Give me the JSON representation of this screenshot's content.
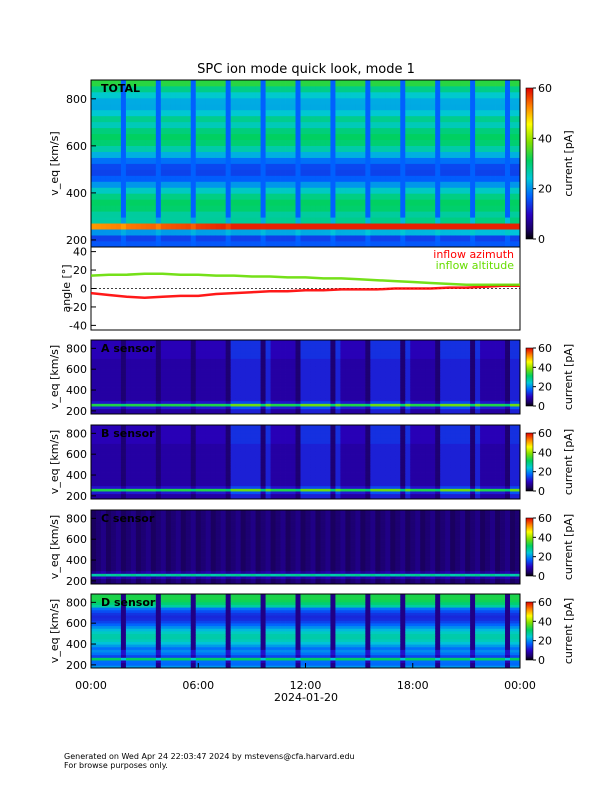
{
  "chart_data": [
    {
      "type": "heatmap",
      "panel": "TOTAL",
      "title": "SPC ion mode quick look, mode 1",
      "label": "TOTAL",
      "ylabel": "v_eq [km/s]",
      "ylim": [
        170,
        880
      ],
      "yticks": [
        200,
        400,
        600,
        800
      ],
      "colorbar": {
        "label": "current [pA]",
        "range": [
          0,
          60
        ],
        "ticks": [
          0,
          20,
          40,
          60
        ]
      },
      "features": {
        "bulk_speed_kms": 260,
        "dropout_blocks": 26
      }
    },
    {
      "type": "line",
      "panel": "angle",
      "ylabel": "angle [°]",
      "ylim": [
        -45,
        45
      ],
      "yticks": [
        -40,
        -20,
        0,
        20,
        40
      ],
      "series": [
        {
          "name": "inflow azimuth",
          "color": "#ff0000",
          "x_hours": [
            0,
            1,
            2,
            3,
            4,
            5,
            6,
            7,
            8,
            9,
            10,
            11,
            12,
            13,
            14,
            15,
            16,
            17,
            18,
            19,
            20,
            21,
            22,
            23,
            24
          ],
          "values": [
            -5,
            -7,
            -9,
            -10,
            -9,
            -8,
            -8,
            -6,
            -5,
            -4,
            -3,
            -3,
            -2,
            -2,
            -1,
            -1,
            -1,
            0,
            0,
            0,
            1,
            1,
            2,
            3,
            3
          ]
        },
        {
          "name": "inflow altitude",
          "color": "#66dd00",
          "x_hours": [
            0,
            1,
            2,
            3,
            4,
            5,
            6,
            7,
            8,
            9,
            10,
            11,
            12,
            13,
            14,
            15,
            16,
            17,
            18,
            19,
            20,
            21,
            22,
            23,
            24
          ],
          "values": [
            14,
            15,
            15,
            16,
            16,
            15,
            15,
            14,
            14,
            13,
            13,
            12,
            12,
            11,
            11,
            10,
            9,
            8,
            7,
            6,
            5,
            4,
            4,
            4,
            4
          ]
        }
      ]
    },
    {
      "type": "heatmap",
      "panel": "A sensor",
      "label": "A sensor",
      "ylabel": "v_eq [km/s]",
      "ylim": [
        170,
        880
      ],
      "yticks": [
        200,
        400,
        600,
        800
      ],
      "colorbar": {
        "label": "current [pA]",
        "range": [
          0,
          60
        ],
        "ticks": [
          0,
          20,
          40,
          60
        ]
      }
    },
    {
      "type": "heatmap",
      "panel": "B sensor",
      "label": "B sensor",
      "ylabel": "v_eq [km/s]",
      "ylim": [
        170,
        880
      ],
      "yticks": [
        200,
        400,
        600,
        800
      ],
      "colorbar": {
        "label": "current [pA]",
        "range": [
          0,
          60
        ],
        "ticks": [
          0,
          20,
          40,
          60
        ]
      }
    },
    {
      "type": "heatmap",
      "panel": "C sensor",
      "label": "C sensor",
      "ylabel": "v_eq [km/s]",
      "ylim": [
        170,
        880
      ],
      "yticks": [
        200,
        400,
        600,
        800
      ],
      "colorbar": {
        "label": "current [pA]",
        "range": [
          0,
          60
        ],
        "ticks": [
          0,
          20,
          40,
          60
        ]
      }
    },
    {
      "type": "heatmap",
      "panel": "D sensor",
      "label": "D sensor",
      "ylabel": "v_eq [km/s]",
      "ylim": [
        170,
        880
      ],
      "yticks": [
        200,
        400,
        600,
        800
      ],
      "colorbar": {
        "label": "current [pA]",
        "range": [
          0,
          60
        ],
        "ticks": [
          0,
          20,
          40,
          60
        ]
      }
    }
  ],
  "xaxis": {
    "ticks": [
      "00:00",
      "06:00",
      "12:00",
      "18:00",
      "00:00"
    ],
    "date": "2024-01-20"
  },
  "legend": {
    "azimuth": "inflow azimuth",
    "altitude": "inflow altitude"
  },
  "footer": {
    "line1": "Generated on Wed Apr 24 22:03:47 2024 by mstevens@cfa.harvard.edu",
    "line2": "For browse purposes only."
  },
  "colors": {
    "azimuth": "#ff0000",
    "altitude": "#66dd00",
    "background": "#ffffff"
  }
}
